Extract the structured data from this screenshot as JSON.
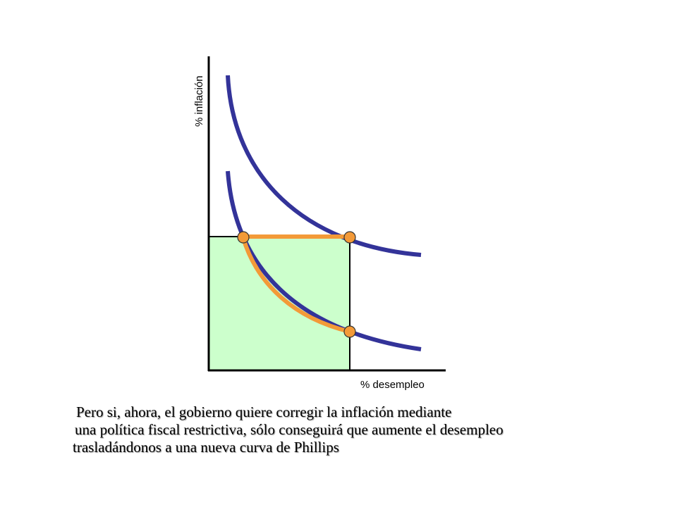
{
  "diagram": {
    "y_axis_label": "% inflación",
    "x_axis_label": "% desempleo",
    "colors": {
      "curve": "#333399",
      "path": "#f39a38",
      "region": "#ccffcc",
      "axis": "#000000"
    }
  },
  "caption": {
    "line1": "Pero si, ahora, el gobierno quiere corregir la inflación mediante",
    "line2": "una política fiscal restrictiva, sólo conseguirá que aumente el desempleo",
    "line3": "trasladándonos a una nueva curva de Phillips"
  }
}
